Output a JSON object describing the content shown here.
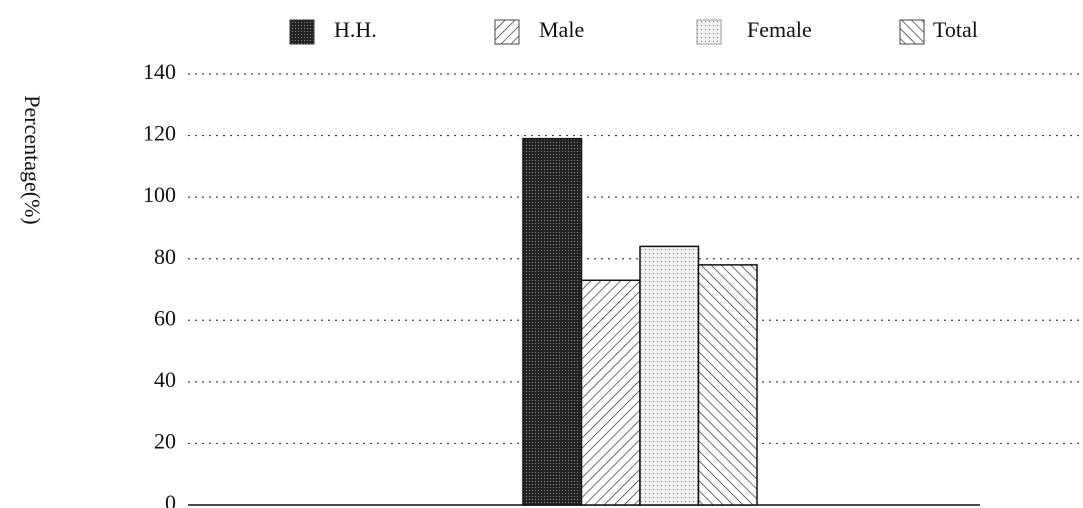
{
  "chart_data": {
    "type": "bar",
    "y_label": "Percentage(%)",
    "categories": [
      null
    ],
    "series": [
      {
        "name": "H.H.",
        "color": "#333333",
        "values": [
          119
        ]
      },
      {
        "name": "Male",
        "color": "#444444",
        "values": [
          73
        ]
      },
      {
        "name": "Female",
        "color": "#999999",
        "values": [
          84
        ]
      },
      {
        "name": "Total",
        "color": "#444444",
        "values": [
          78
        ]
      }
    ],
    "ylim": [
      0,
      140
    ],
    "yticks": [
      0,
      20,
      40,
      60,
      80,
      100,
      120,
      140
    ],
    "grid": true,
    "legend": "top"
  }
}
